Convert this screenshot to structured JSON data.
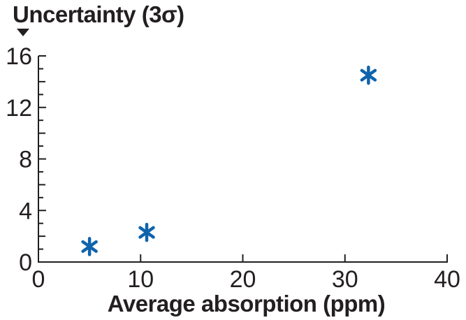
{
  "figure": {
    "title": "Uncertainty (3σ)",
    "x_axis_label": "Average absorption (ppm)"
  },
  "colors": {
    "ink": "#231f20",
    "marker_blue": "#0f63ad",
    "background": "#ffffff"
  },
  "chart_data": {
    "type": "scatter",
    "title": "Uncertainty (3σ)",
    "xlabel": "Average absorption (ppm)",
    "ylabel": "Uncertainty (3σ)",
    "points": [
      {
        "x": 5,
        "y": 1.2
      },
      {
        "x": 10.6,
        "y": 2.3
      },
      {
        "x": 32.3,
        "y": 14.5
      }
    ],
    "xlim": [
      0,
      40
    ],
    "ylim": [
      0,
      16
    ],
    "xticks": [
      0,
      10,
      20,
      30,
      40
    ],
    "yticks": [
      0,
      4,
      8,
      12,
      16
    ],
    "y_minor_tick_step": 1,
    "x_minor_ticks": false,
    "marker": "asterisk",
    "marker_color": "#0f63ad",
    "grid": false,
    "legend": null,
    "annotation": "filled down-triangle pointing at top of y-axis below title"
  }
}
